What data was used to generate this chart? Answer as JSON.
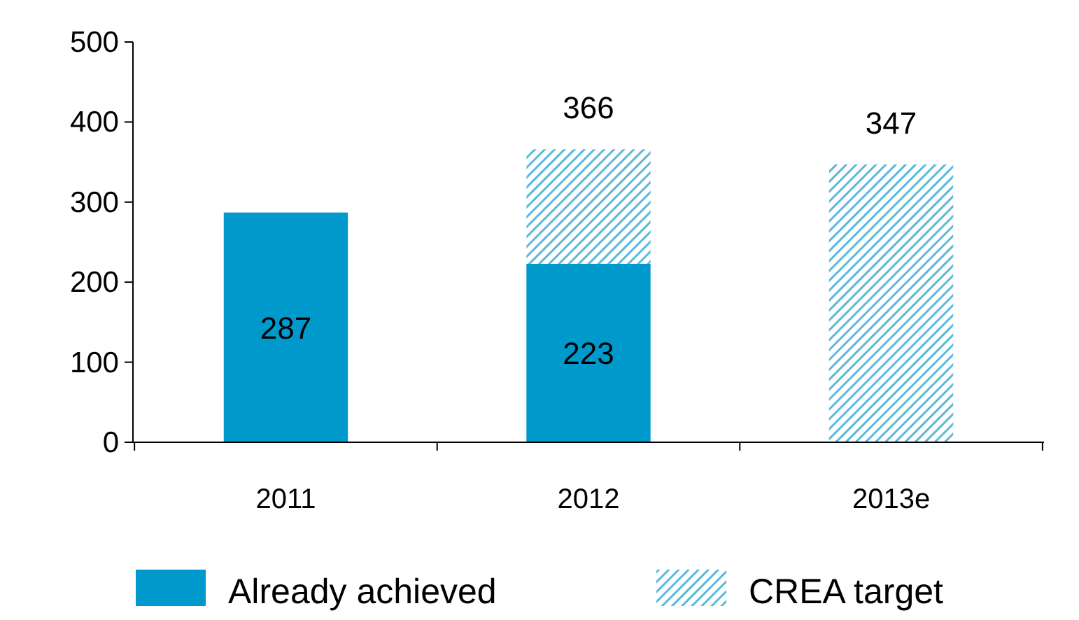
{
  "chart_data": {
    "type": "bar",
    "stacked": true,
    "categories": [
      "2011",
      "2012",
      "2013e"
    ],
    "series": [
      {
        "name": "Already achieved",
        "color": "#0099cc",
        "values": [
          287,
          223,
          0
        ],
        "value_labels": [
          "287",
          "223",
          null
        ]
      },
      {
        "name": "CREA target",
        "color": "#5bb8dc",
        "values": [
          0,
          143,
          347
        ]
      }
    ],
    "totals": [
      null,
      "366",
      "347"
    ],
    "ylim": [
      0,
      500
    ],
    "yticks": [
      0,
      100,
      200,
      300,
      400,
      500
    ],
    "grid": false,
    "legend": "bottom"
  }
}
